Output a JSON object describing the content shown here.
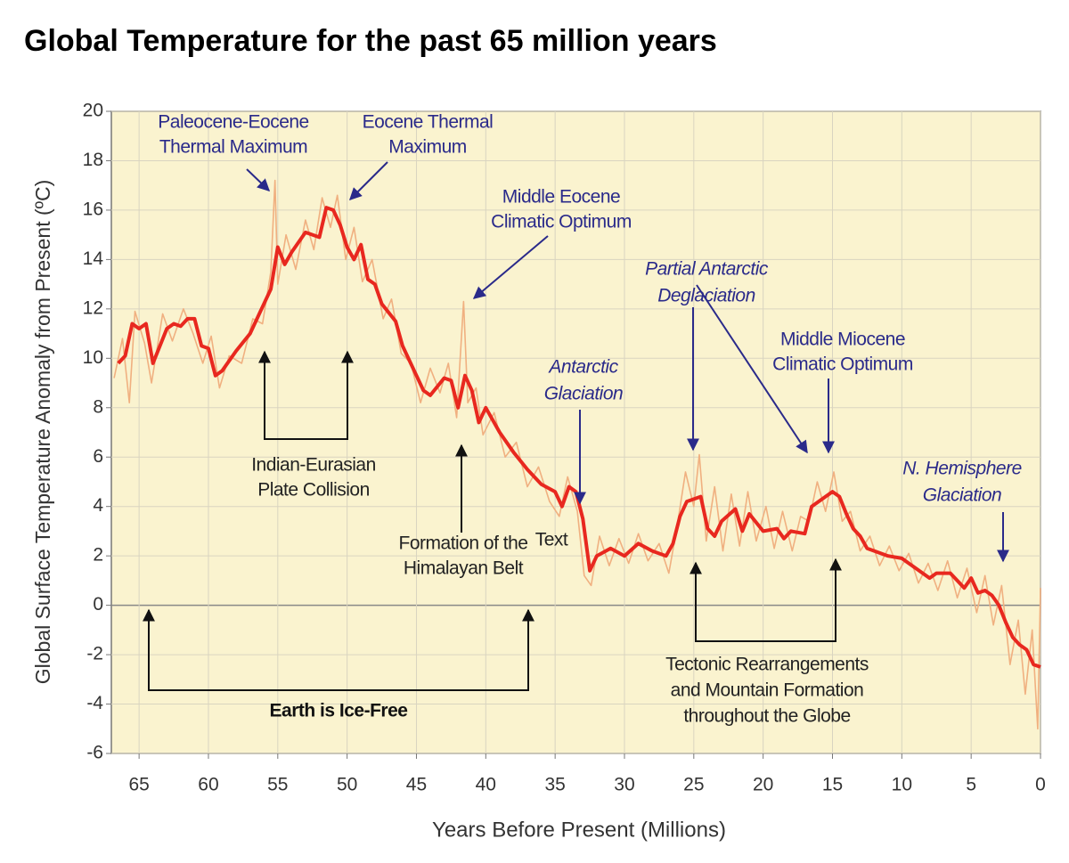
{
  "chart_data": {
    "type": "line",
    "title": "Global Temperature for the past 65 million years",
    "x_label": "Years Before Present (Millions)",
    "y_label": "Global Surface Temperature Anomaly from Present (ºC)",
    "xlim": [
      67,
      0
    ],
    "ylim": [
      -6,
      20
    ],
    "xticks": [
      65,
      60,
      55,
      50,
      45,
      40,
      35,
      30,
      25,
      20,
      15,
      10,
      5,
      0
    ],
    "yticks": [
      -6,
      -4,
      -2,
      0,
      2,
      4,
      6,
      8,
      10,
      12,
      14,
      16,
      18,
      20
    ],
    "grid": true,
    "series": [
      {
        "color": "#f0b080",
        "x": [
          66.8,
          66.2,
          65.7,
          65.3,
          64.6,
          64.1,
          63.3,
          62.6,
          61.8,
          61.1,
          60.4,
          59.8,
          59.2,
          58.5,
          57.6,
          56.8,
          56.1,
          55.5,
          55.2,
          55.0,
          54.4,
          53.7,
          53.0,
          52.4,
          51.8,
          51.2,
          50.7,
          50.1,
          49.5,
          48.9,
          48.2,
          47.4,
          46.8,
          46.1,
          45.4,
          44.7,
          44.0,
          43.3,
          42.7,
          42.1,
          41.6,
          41.3,
          40.7,
          40.2,
          39.4,
          38.6,
          37.8,
          37.0,
          36.2,
          35.4,
          34.7,
          34.1,
          33.4,
          32.9,
          32.4,
          31.8,
          31.1,
          30.4,
          29.7,
          29.0,
          28.3,
          27.5,
          26.8,
          26.2,
          25.6,
          25.0,
          24.6,
          24.1,
          23.5,
          22.9,
          22.3,
          21.7,
          21.1,
          20.5,
          19.8,
          19.2,
          18.6,
          17.9,
          17.3,
          16.7,
          16.1,
          15.5,
          14.9,
          14.3,
          13.7,
          13.0,
          12.3,
          11.6,
          10.9,
          10.2,
          9.5,
          8.8,
          8.1,
          7.4,
          6.7,
          6.0,
          5.3,
          4.6,
          4.0,
          3.4,
          2.8,
          2.2,
          1.6,
          1.1,
          0.6,
          0.2,
          0
        ],
        "values": [
          9.2,
          10.8,
          8.2,
          11.9,
          10.6,
          9.0,
          11.8,
          10.7,
          12.0,
          11.0,
          9.8,
          10.9,
          8.8,
          10.1,
          9.8,
          11.6,
          11.4,
          13.5,
          17.2,
          13.0,
          15.0,
          13.6,
          15.6,
          14.4,
          16.5,
          15.3,
          16.6,
          14.0,
          15.3,
          13.1,
          14.0,
          11.6,
          12.4,
          10.2,
          9.8,
          8.2,
          9.6,
          8.6,
          9.8,
          7.6,
          12.3,
          8.2,
          8.8,
          6.9,
          7.8,
          6.0,
          6.6,
          4.8,
          5.6,
          4.2,
          3.6,
          5.2,
          3.8,
          1.2,
          0.8,
          2.8,
          1.6,
          2.7,
          1.7,
          2.9,
          1.8,
          2.5,
          1.3,
          3.2,
          5.4,
          4.0,
          6.1,
          2.6,
          4.8,
          2.2,
          4.5,
          2.4,
          4.6,
          2.6,
          4.0,
          2.3,
          3.8,
          2.2,
          3.6,
          3.4,
          5.0,
          3.8,
          5.4,
          3.4,
          3.8,
          2.2,
          2.8,
          1.6,
          2.4,
          1.4,
          2.1,
          0.9,
          1.7,
          0.6,
          1.8,
          0.3,
          1.5,
          -0.3,
          1.2,
          -0.8,
          0.8,
          -2.4,
          -0.6,
          -3.6,
          -1.0,
          -5.0,
          0.7
        ]
      },
      {
        "color": "#e8281f",
        "x": [
          66.5,
          66,
          65.5,
          65,
          64.5,
          64,
          63,
          62.5,
          62,
          61.5,
          61,
          60.5,
          60,
          59.5,
          59,
          58,
          57,
          56,
          55.5,
          55,
          54.5,
          54,
          53,
          52,
          51.5,
          51,
          50.5,
          50,
          49.5,
          49,
          48.5,
          48,
          47.5,
          46.5,
          46,
          45,
          44.5,
          44,
          43,
          42.5,
          42,
          41.5,
          41,
          40.5,
          40,
          39,
          38,
          37,
          36,
          35,
          34.5,
          34,
          33.5,
          33,
          32.5,
          32,
          31,
          30,
          29,
          28,
          27,
          26.5,
          26,
          25.5,
          24.5,
          24,
          23.5,
          23,
          22,
          21.5,
          21,
          20,
          19,
          18.5,
          18,
          17,
          16.5,
          15.5,
          15,
          14.5,
          14,
          13.5,
          13,
          12.5,
          11,
          10,
          9,
          8,
          7.5,
          6.5,
          6,
          5.5,
          5,
          4.5,
          4,
          3.5,
          3,
          2.5,
          2,
          1.5,
          1,
          0.5,
          0
        ],
        "values": [
          9.8,
          10.1,
          11.4,
          11.2,
          11.4,
          9.8,
          11.2,
          11.4,
          11.3,
          11.6,
          11.6,
          10.5,
          10.4,
          9.3,
          9.5,
          10.3,
          11.0,
          12.2,
          12.8,
          14.5,
          13.8,
          14.3,
          15.1,
          14.9,
          16.1,
          16.0,
          15.4,
          14.5,
          14.0,
          14.6,
          13.2,
          13.0,
          12.2,
          11.5,
          10.5,
          9.3,
          8.7,
          8.5,
          9.2,
          9.1,
          8.0,
          9.3,
          8.7,
          7.4,
          8.0,
          7.0,
          6.2,
          5.5,
          4.9,
          4.6,
          4.0,
          4.8,
          4.6,
          3.5,
          1.4,
          2.0,
          2.3,
          2.0,
          2.5,
          2.2,
          2.0,
          2.5,
          3.6,
          4.2,
          4.4,
          3.1,
          2.8,
          3.4,
          3.9,
          3.0,
          3.7,
          3.0,
          3.1,
          2.7,
          3.0,
          2.9,
          4.0,
          4.4,
          4.6,
          4.4,
          3.7,
          3.1,
          2.8,
          2.3,
          2.0,
          1.9,
          1.5,
          1.1,
          1.3,
          1.3,
          1.0,
          0.7,
          1.1,
          0.5,
          0.6,
          0.4,
          0,
          -0.7,
          -1.3,
          -1.6,
          -1.8,
          -2.4,
          -2.5
        ]
      }
    ],
    "annotations": [
      {
        "lines": [
          "Paleocene-Eocene",
          "Thermal Maximum"
        ]
      },
      {
        "lines": [
          "Eocene Thermal",
          "Maximum"
        ]
      },
      {
        "lines": [
          "Middle Eocene",
          "Climatic Optimum"
        ]
      },
      {
        "lines": [
          "Partial Antarctic",
          "Deglaciation"
        ]
      },
      {
        "lines": [
          "Middle Miocene",
          "Climatic Optimum"
        ]
      },
      {
        "lines": [
          "Antarctic",
          "Glaciation"
        ]
      },
      {
        "lines": [
          "N. Hemisphere",
          "Glaciation"
        ]
      },
      {
        "lines": [
          "Indian-Eurasian",
          "Plate Collision"
        ]
      },
      {
        "lines": [
          "Formation of the",
          "Himalayan Belt"
        ]
      },
      {
        "lines": [
          "Text"
        ]
      },
      {
        "lines": [
          "Tectonic Rearrangements",
          "and Mountain Formation",
          "throughout the Globe"
        ]
      },
      {
        "lines": [
          "Earth is Ice-Free"
        ]
      }
    ]
  }
}
